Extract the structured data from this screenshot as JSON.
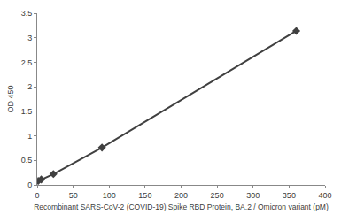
{
  "chart_data": {
    "type": "line",
    "x_label": "Recombinant SARS-CoV-2 (COVID-19) Spike RBD Protein, BA.2 / Omicron variant (pM)",
    "y_label": "OD 450",
    "x": [
      1.4,
      5.6,
      22.5,
      90,
      360
    ],
    "values": [
      0.08,
      0.11,
      0.22,
      0.76,
      3.14
    ],
    "color": "#404040",
    "marker": "diamond",
    "xlim": [
      0,
      400
    ],
    "xticks": [
      0,
      50,
      100,
      150,
      200,
      250,
      300,
      350,
      400
    ],
    "ylim": [
      0,
      3.5
    ],
    "yticks": [
      0,
      0.5,
      1,
      1.5,
      2,
      2.5,
      3,
      3.5
    ],
    "grid": false
  }
}
